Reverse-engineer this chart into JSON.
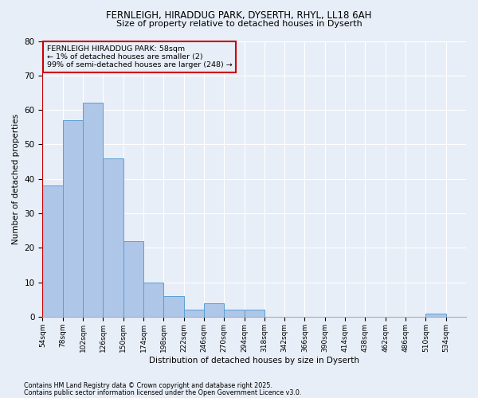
{
  "title1": "FERNLEIGH, HIRADDUG PARK, DYSERTH, RHYL, LL18 6AH",
  "title2": "Size of property relative to detached houses in Dyserth",
  "xlabel": "Distribution of detached houses by size in Dyserth",
  "ylabel": "Number of detached properties",
  "bar_color": "#aec6e8",
  "bar_edge_color": "#5a9fd4",
  "annotation_text_line1": "FERNLEIGH HIRADDUG PARK: 58sqm",
  "annotation_text_line2": "← 1% of detached houses are smaller (2)",
  "annotation_text_line3": "99% of semi-detached houses are larger (248) →",
  "footnote1": "Contains HM Land Registry data © Crown copyright and database right 2025.",
  "footnote2": "Contains public sector information licensed under the Open Government Licence v3.0.",
  "bins": [
    54,
    78,
    102,
    126,
    150,
    174,
    198,
    222,
    246,
    270,
    294,
    318,
    342,
    366,
    390,
    414,
    438,
    462,
    486,
    510,
    534
  ],
  "counts": [
    38,
    57,
    62,
    46,
    22,
    10,
    6,
    2,
    4,
    2,
    2,
    0,
    0,
    0,
    0,
    0,
    0,
    0,
    0,
    1,
    0
  ],
  "ylim": [
    0,
    80
  ],
  "yticks": [
    0,
    10,
    20,
    30,
    40,
    50,
    60,
    70,
    80
  ],
  "background_color": "#e8eef7",
  "plot_bg_color": "#e8eef7",
  "red_line_color": "#cc0000",
  "annotation_edge_color": "#cc0000"
}
